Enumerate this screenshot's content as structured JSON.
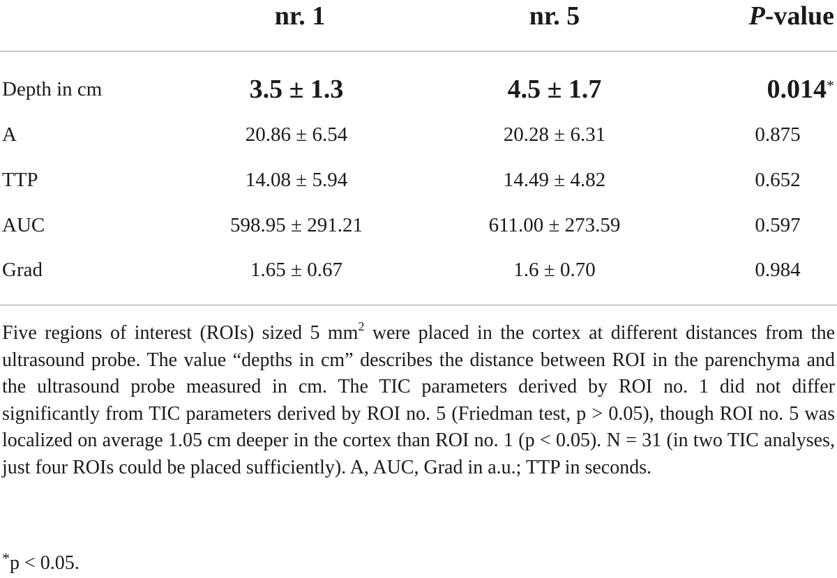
{
  "table": {
    "headers": {
      "group1": "nr. 1",
      "group2": "nr. 5",
      "pvalue_italic": "P",
      "pvalue_rest": "-value"
    },
    "rows": [
      {
        "label": "Depth in cm",
        "nr1": "3.5 ± 1.3",
        "nr5": "4.5 ± 1.7",
        "p": "0.014",
        "p_mark": "*"
      },
      {
        "label": "A",
        "nr1": "20.86 ± 6.54",
        "nr5": "20.28 ± 6.31",
        "p": "0.875"
      },
      {
        "label": "TTP",
        "nr1": "14.08 ± 5.94",
        "nr5": "14.49 ± 4.82",
        "p": "0.652"
      },
      {
        "label": "AUC",
        "nr1": "598.95 ± 291.21",
        "nr5": "611.00 ± 273.59",
        "p": "0.597"
      },
      {
        "label": "Grad",
        "nr1": "1.65 ± 0.67",
        "nr5": "1.6 ± 0.70",
        "p": "0.984"
      }
    ]
  },
  "footnote": {
    "part1": "Five regions of interest (ROIs) sized 5 mm",
    "superscript": "2",
    "part2": " were placed in the cortex at different distances from the ultrasound probe. The value “depths in cm” describes the distance between ROI in the parenchyma and the ultrasound probe measured in cm. The TIC parameters derived by ROI no. 1 did not differ significantly from TIC parameters derived by ROI no. 5 (Friedman test, p > 0.05), though ROI no. 5 was localized on average 1.05 cm deeper in the cortex than ROI no. 1 (p < 0.05). N = 31 (in two TIC analyses, just four ROIs could be placed sufficiently). A, AUC, Grad in a.u.; TTP in seconds."
  },
  "significance": {
    "mark": "*",
    "text": "p < 0.05."
  }
}
